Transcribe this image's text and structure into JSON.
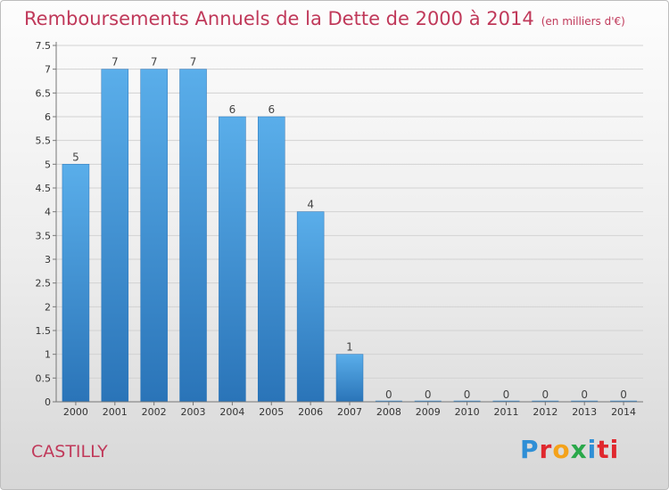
{
  "chart_data": {
    "type": "bar",
    "title": "Remboursements Annuels de la Dette de 2000 à 2014",
    "unit": "(en milliers d'€)",
    "categories": [
      "2000",
      "2001",
      "2002",
      "2003",
      "2004",
      "2005",
      "2006",
      "2007",
      "2008",
      "2009",
      "2010",
      "2011",
      "2012",
      "2013",
      "2014"
    ],
    "values": [
      5,
      7,
      7,
      7,
      6,
      6,
      4,
      1,
      0,
      0,
      0,
      0,
      0,
      0,
      0
    ],
    "data_labels": [
      "5",
      "7",
      "7",
      "7",
      "6",
      "6",
      "4",
      "1",
      "0",
      "0",
      "0",
      "0",
      "0",
      "0",
      "0"
    ],
    "yticks": [
      "0",
      "0.5",
      "1",
      "1.5",
      "2",
      "2.5",
      "3",
      "3.5",
      "4",
      "4.5",
      "5",
      "5.5",
      "6",
      "6.5",
      "7",
      "7.5"
    ],
    "ylim": [
      0,
      7.5
    ],
    "grid": true,
    "bar_color": "#3d8fd6"
  },
  "commune": "CASTILLY",
  "brand": {
    "letters": [
      "P",
      "r",
      "o",
      "x",
      "i",
      "ti"
    ]
  }
}
